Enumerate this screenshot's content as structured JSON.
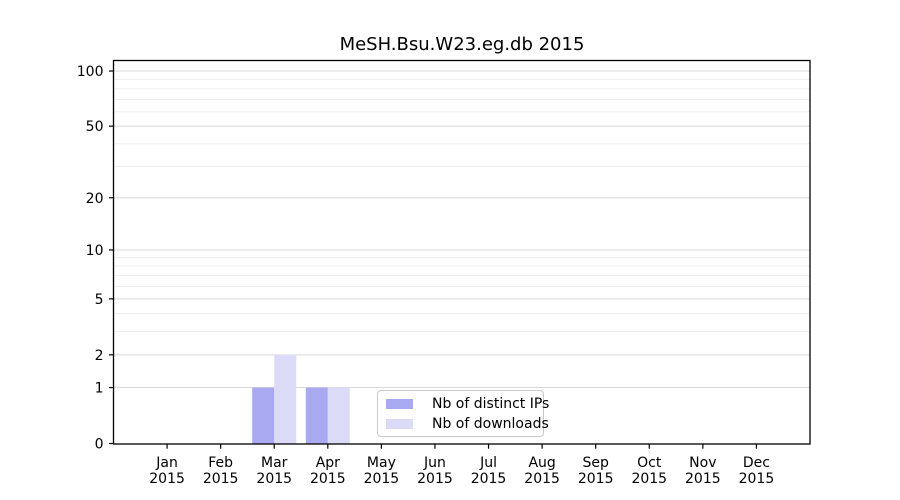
{
  "figure": {
    "title": "MeSH.Bsu.W23.eg.db 2015"
  },
  "colors": {
    "distinct_ips": "#a9a9f2",
    "downloads": "#dbdbf8",
    "grid_major": "#d8d8d8",
    "grid_minor": "#efefef",
    "axis": "#000000",
    "legend_border": "#c8c8c8",
    "background": "#ffffff",
    "text": "#000000"
  },
  "legend": {
    "items": [
      {
        "label": "Nb of distinct IPs",
        "color_key": "distinct_ips"
      },
      {
        "label": "Nb of downloads",
        "color_key": "downloads"
      }
    ]
  },
  "chart_data": {
    "type": "bar",
    "title": "MeSH.Bsu.W23.eg.db 2015",
    "x_months": [
      "Jan",
      "Feb",
      "Mar",
      "Apr",
      "May",
      "Jun",
      "Jul",
      "Aug",
      "Sep",
      "Oct",
      "Nov",
      "Dec"
    ],
    "x_year": "2015",
    "series": [
      {
        "name": "Nb of distinct IPs",
        "values": [
          0,
          0,
          1,
          1,
          0,
          0,
          0,
          0,
          0,
          0,
          0,
          0
        ]
      },
      {
        "name": "Nb of downloads",
        "values": [
          0,
          0,
          2,
          1,
          0,
          0,
          0,
          0,
          0,
          0,
          0,
          0
        ]
      }
    ],
    "yscale": "log1p",
    "ylim": [
      0,
      100
    ],
    "yticks": [
      0,
      1,
      2,
      5,
      10,
      20,
      50,
      100
    ],
    "yticks_minor": [
      3,
      4,
      6,
      7,
      8,
      9,
      30,
      40,
      60,
      70,
      80,
      90
    ],
    "grid": "horizontal",
    "legend_position": "bottom-center-inside"
  }
}
